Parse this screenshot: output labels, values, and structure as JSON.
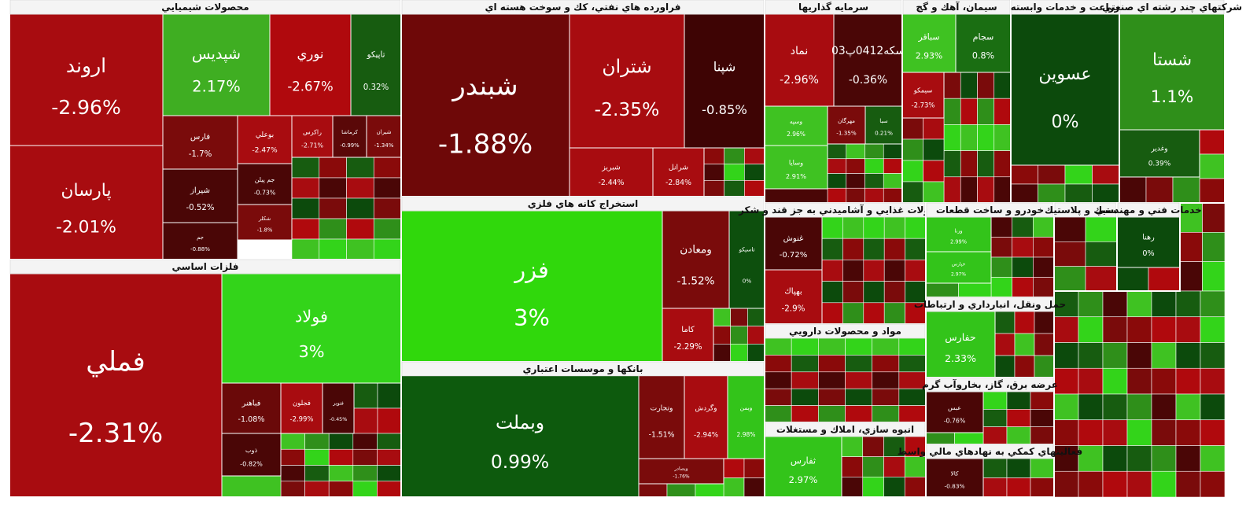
{
  "chart_data": {
    "type": "treemap",
    "sectors": [
      {
        "title": "محصولات شيميايي",
        "stocks": [
          {
            "name": "اروند",
            "change": "-2.96%",
            "color": "#a80c10"
          },
          {
            "name": "پارسان",
            "change": "-2.01%",
            "color": "#a80c10"
          },
          {
            "name": "شپديس",
            "change": "2.17%",
            "color": "#3fae22"
          },
          {
            "name": "نوري",
            "change": "-2.67%",
            "color": "#b0090d"
          },
          {
            "name": "تاپيكو",
            "change": "0.32%",
            "color": "#175c10"
          },
          {
            "name": "فارس",
            "change": "-1.7%",
            "color": "#7a0b0b"
          },
          {
            "name": "شيراز",
            "change": "-0.52%",
            "color": "#4a0606"
          },
          {
            "name": "جم",
            "change": "-0.88%",
            "color": "#4a0606"
          },
          {
            "name": "بوعلي",
            "change": "-2.47%",
            "color": "#a80c10"
          },
          {
            "name": "جم پيلن",
            "change": "-0.73%",
            "color": "#4a0606"
          },
          {
            "name": "شكلر",
            "change": "-1.8%",
            "color": "#7a0b0b"
          },
          {
            "name": "راكرس",
            "change": "-2.71%",
            "color": "#a80c10"
          },
          {
            "name": "كرماشا",
            "change": "-0.99%",
            "color": "#5a0808"
          },
          {
            "name": "شيران",
            "change": "-1.34%",
            "color": "#7a0b0b"
          }
        ]
      },
      {
        "title": "فلزات اساسي",
        "stocks": [
          {
            "name": "فملي",
            "change": "-2.31%",
            "color": "#a80c10"
          },
          {
            "name": "فولاد",
            "change": "3%",
            "color": "#33d41a"
          },
          {
            "name": "فباهنر",
            "change": "-1.08%",
            "color": "#6a0909"
          },
          {
            "name": "فجلون",
            "change": "-2.99%",
            "color": "#a80c10"
          },
          {
            "name": "فنوبر",
            "change": "-0.45%",
            "color": "#4a0606"
          },
          {
            "name": "ذوب",
            "change": "-0.82%",
            "color": "#4a0606"
          }
        ]
      },
      {
        "title": "فراورده هاي نفتي، كك و سوخت هسته اي",
        "stocks": [
          {
            "name": "شبندر",
            "change": "-1.88%",
            "color": "#6e0808"
          },
          {
            "name": "شتران",
            "change": "-2.35%",
            "color": "#a80c10"
          },
          {
            "name": "شپنا",
            "change": "-0.85%",
            "color": "#3e0404"
          },
          {
            "name": "شبريز",
            "change": "-2.44%",
            "color": "#a80c10"
          },
          {
            "name": "شرانل",
            "change": "-2.84%",
            "color": "#a80c10"
          }
        ]
      },
      {
        "title": "استخراج كانه هاي فلزي",
        "stocks": [
          {
            "name": "فزر",
            "change": "3%",
            "color": "#30d80c"
          },
          {
            "name": "ومعادن",
            "change": "-1.52%",
            "color": "#7a0b0b"
          },
          {
            "name": "تاسيكو",
            "change": "0%",
            "color": "#0d4f0d"
          },
          {
            "name": "كاما",
            "change": "-2.29%",
            "color": "#a80c10"
          }
        ]
      },
      {
        "title": "بانكها و موسسات اعتباري",
        "stocks": [
          {
            "name": "وبملت",
            "change": "0.99%",
            "color": "#0d5a0d"
          },
          {
            "name": "وتجارت",
            "change": "-1.51%",
            "color": "#7a0b0b"
          },
          {
            "name": "وگردش",
            "change": "-2.94%",
            "color": "#a80c10"
          },
          {
            "name": "وبمن",
            "change": "2.98%",
            "color": "#33c41a"
          },
          {
            "name": "وبصادر",
            "change": "-1.76%",
            "color": "#7a0b0b"
          }
        ]
      },
      {
        "title": "سرمايه گذاريها",
        "stocks": [
          {
            "name": "نماد",
            "change": "-2.96%",
            "color": "#a80c10"
          },
          {
            "name": "سكه0412پ03",
            "change": "-0.36%",
            "color": "#4a0606"
          },
          {
            "name": "وسپه",
            "change": "2.96%",
            "color": "#3fc222"
          },
          {
            "name": "وسايا",
            "change": "2.91%",
            "color": "#3fc222"
          },
          {
            "name": "مهرگان",
            "change": "-1.35%",
            "color": "#7a0b0b"
          },
          {
            "name": "سبا",
            "change": "0.21%",
            "color": "#175c10"
          }
        ]
      },
      {
        "title": "سيمان، آهك و گچ",
        "stocks": [
          {
            "name": "سباقر",
            "change": "2.93%",
            "color": "#3fc222"
          },
          {
            "name": "سجام",
            "change": "0.8%",
            "color": "#1a6e12"
          },
          {
            "name": "سيمكو",
            "change": "-2.73%",
            "color": "#a80c10"
          }
        ]
      },
      {
        "title": "زراعت و خدمات وابسته",
        "stocks": [
          {
            "name": "عسوين",
            "change": "0%",
            "color": "#0c4a0c"
          }
        ]
      },
      {
        "title": "شركتهاي چند رشته اي صنعتي",
        "stocks": [
          {
            "name": "شستا",
            "change": "1.1%",
            "color": "#2f8f1a"
          },
          {
            "name": "وغدير",
            "change": "0.39%",
            "color": "#175c10"
          }
        ]
      },
      {
        "title": "محصولات غذايي و آشاميدني به جز قند و شكر",
        "stocks": [
          {
            "name": "غنوش",
            "change": "-0.72%",
            "color": "#4a0606"
          },
          {
            "name": "بهپاك",
            "change": "-2.9%",
            "color": "#a80c10"
          }
        ]
      },
      {
        "title": "مواد و محصولات دارويي",
        "stocks": []
      },
      {
        "title": "انبوه سازي، املاك و مستغلات",
        "stocks": [
          {
            "name": "ثفارس",
            "change": "2.97%",
            "color": "#33c41a"
          }
        ]
      },
      {
        "title": "خودرو و ساخت قطعات",
        "stocks": [
          {
            "name": "ورنا",
            "change": "2.99%",
            "color": "#33c41a"
          },
          {
            "name": "خپارس",
            "change": "2.97%",
            "color": "#33c41a"
          }
        ]
      },
      {
        "title": "حمل ونقل، انبارداري و ارتباطات",
        "stocks": [
          {
            "name": "حفارس",
            "change": "2.33%",
            "color": "#33c41a"
          }
        ]
      },
      {
        "title": "عرضه برق، گاز، بخاروآب گرم",
        "stocks": [
          {
            "name": "عبس",
            "change": "-0.76%",
            "color": "#4a0606"
          }
        ]
      },
      {
        "title": "فعاليتهاي كمكي به نهادهاي مالي واسط",
        "stocks": [
          {
            "name": "كالا",
            "change": "-0.83%",
            "color": "#4a0606"
          }
        ]
      },
      {
        "title": "لاستيك و پلاستيك",
        "stocks": []
      },
      {
        "title": "خدمات فني و مهندسي",
        "stocks": [
          {
            "name": "رهنا",
            "change": "0%",
            "color": "#0c4a0c"
          }
        ]
      }
    ]
  }
}
